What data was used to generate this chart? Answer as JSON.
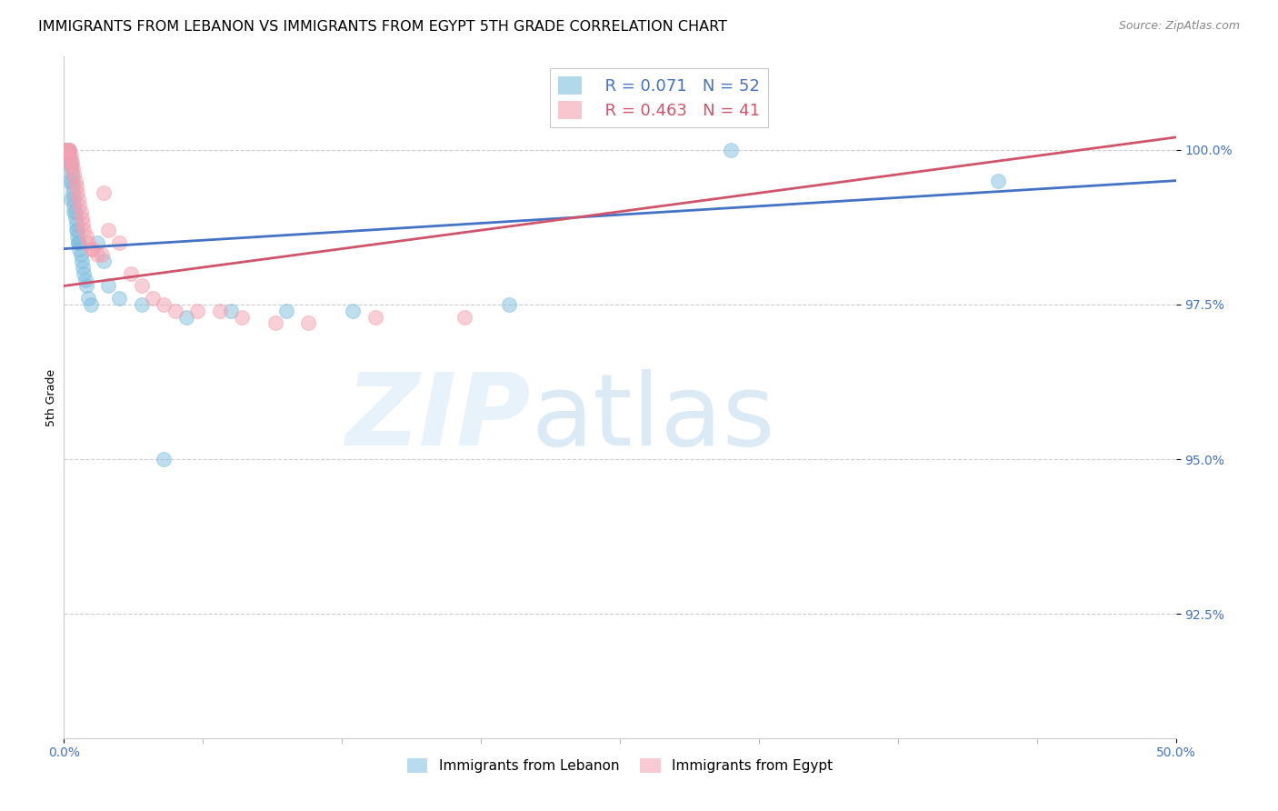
{
  "title": "IMMIGRANTS FROM LEBANON VS IMMIGRANTS FROM EGYPT 5TH GRADE CORRELATION CHART",
  "source": "Source: ZipAtlas.com",
  "ylabel": "5th Grade",
  "xlim": [
    0.0,
    50.0
  ],
  "ylim": [
    90.5,
    101.5
  ],
  "legend_R_lebanon": "R = 0.071",
  "legend_N_lebanon": "N = 52",
  "legend_R_egypt": "R = 0.463",
  "legend_N_egypt": "N = 41",
  "color_lebanon": "#7fbfdf",
  "color_egypt": "#f4a0b0",
  "color_trendline_lebanon": "#4472c4",
  "color_trendline_egypt": "#d0546b",
  "background_color": "#ffffff",
  "grid_color": "#c8c8c8",
  "axis_color": "#4472c4",
  "title_fontsize": 11.5,
  "tick_fontsize": 10,
  "ylabel_fontsize": 9,
  "lebanon_x": [
    0.05,
    0.1,
    0.1,
    0.15,
    0.15,
    0.2,
    0.2,
    0.25,
    0.25,
    0.3,
    0.3,
    0.35,
    0.35,
    0.4,
    0.4,
    0.45,
    0.45,
    0.5,
    0.5,
    0.55,
    0.55,
    0.6,
    0.6,
    0.65,
    0.65,
    0.7,
    0.7,
    0.75,
    0.8,
    0.85,
    0.9,
    0.95,
    1.0,
    1.1,
    1.2,
    1.5,
    1.8,
    2.0,
    2.5,
    3.5,
    5.5,
    7.5,
    10.0,
    13.0,
    20.0,
    30.0,
    42.0,
    0.12,
    0.22,
    0.32,
    0.42,
    4.5
  ],
  "lebanon_y": [
    100.0,
    100.0,
    100.0,
    100.0,
    100.0,
    100.0,
    100.0,
    100.0,
    99.9,
    99.8,
    99.7,
    99.6,
    99.5,
    99.4,
    99.3,
    99.2,
    99.1,
    99.0,
    98.9,
    98.8,
    98.7,
    98.7,
    98.6,
    98.5,
    98.5,
    98.5,
    98.4,
    98.3,
    98.2,
    98.1,
    98.0,
    97.9,
    97.8,
    97.6,
    97.5,
    98.5,
    98.2,
    97.8,
    97.6,
    97.5,
    97.3,
    97.4,
    97.4,
    97.4,
    97.5,
    100.0,
    99.5,
    99.8,
    99.5,
    99.2,
    99.0,
    95.0
  ],
  "egypt_x": [
    0.1,
    0.15,
    0.2,
    0.25,
    0.3,
    0.35,
    0.4,
    0.45,
    0.5,
    0.55,
    0.6,
    0.65,
    0.7,
    0.75,
    0.8,
    0.85,
    0.9,
    1.0,
    1.2,
    1.5,
    1.8,
    2.0,
    2.5,
    3.0,
    3.5,
    4.5,
    5.0,
    6.0,
    7.0,
    8.0,
    9.5,
    11.0,
    14.0,
    18.0,
    0.12,
    0.22,
    0.32,
    1.1,
    1.3,
    1.7,
    4.0
  ],
  "egypt_y": [
    100.0,
    100.0,
    100.0,
    100.0,
    99.9,
    99.8,
    99.7,
    99.6,
    99.5,
    99.4,
    99.3,
    99.2,
    99.1,
    99.0,
    98.9,
    98.8,
    98.7,
    98.6,
    98.4,
    98.3,
    99.3,
    98.7,
    98.5,
    98.0,
    97.8,
    97.5,
    97.4,
    97.4,
    97.4,
    97.3,
    97.2,
    97.2,
    97.3,
    97.3,
    99.95,
    99.85,
    99.75,
    98.5,
    98.4,
    98.3,
    97.6
  ],
  "trendline_lb_x0": 0.0,
  "trendline_lb_y0": 98.4,
  "trendline_lb_x1": 50.0,
  "trendline_lb_y1": 99.5,
  "trendline_eg_x0": 0.0,
  "trendline_eg_y0": 97.8,
  "trendline_eg_x1": 50.0,
  "trendline_eg_y1": 100.2
}
